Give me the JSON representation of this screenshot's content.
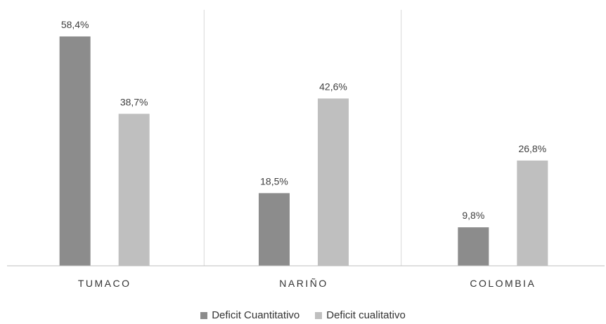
{
  "chart_data": {
    "type": "bar",
    "title": "",
    "xlabel": "",
    "ylabel": "",
    "categories": [
      "TUMACO",
      "NARIÑO",
      "COLOMBIA"
    ],
    "series": [
      {
        "name": "Deficit Cuantitativo",
        "values": [
          58.4,
          18.5,
          9.8
        ],
        "labels": [
          "58,4%",
          "18,5%",
          "9,8%"
        ],
        "color": "#8c8c8c"
      },
      {
        "name": "Deficit cualitativo",
        "values": [
          38.7,
          42.6,
          26.8
        ],
        "labels": [
          "38,7%",
          "42,6%",
          "26,8%"
        ],
        "color": "#bfbfbf"
      }
    ],
    "ylim": [
      0,
      66
    ],
    "grid": false,
    "category_separators": true,
    "legend_position": "bottom",
    "colors": {
      "axis": "#bfbfbf",
      "separator": "#d9d9d9",
      "text": "#404040"
    }
  }
}
